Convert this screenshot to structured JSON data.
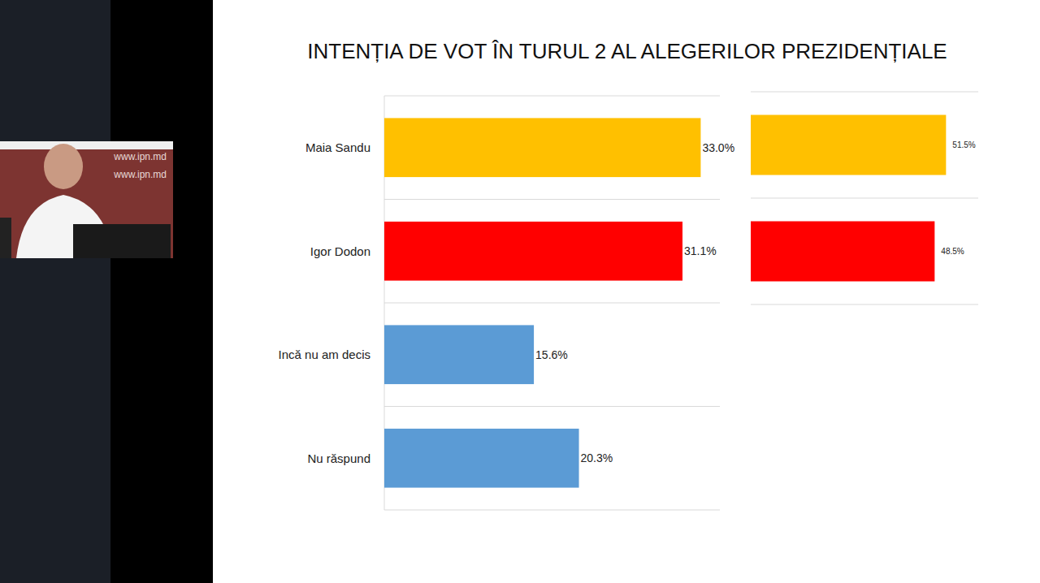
{
  "watermark": "www.ipn.md",
  "chart_data": [
    {
      "type": "bar",
      "title": "INTENȚIA DE VOT ÎN TURUL 2 AL ALEGERILOR PREZIDENȚIALE",
      "orientation": "horizontal",
      "categories": [
        "Maia Sandu",
        "Igor Dodon",
        "Incă nu am decis",
        "Nu răspund"
      ],
      "values": [
        33.0,
        31.1,
        15.6,
        20.3
      ],
      "value_labels": [
        "33.0%",
        "31.1%",
        "15.6%",
        "20.3%"
      ],
      "colors": [
        "#ffc000",
        "#ff0000",
        "#5b9bd5",
        "#5b9bd5"
      ],
      "xlim": [
        0,
        35
      ],
      "data_labels": true,
      "tick_labels": false
    },
    {
      "type": "bar",
      "orientation": "horizontal",
      "categories": [
        null,
        null
      ],
      "values": [
        51.5,
        48.5
      ],
      "value_labels": [
        "51.5%",
        "48.5%"
      ],
      "colors": [
        "#ffc000",
        "#ff0000"
      ],
      "xlim": [
        0,
        60
      ],
      "data_labels": true,
      "tick_labels": false
    }
  ]
}
